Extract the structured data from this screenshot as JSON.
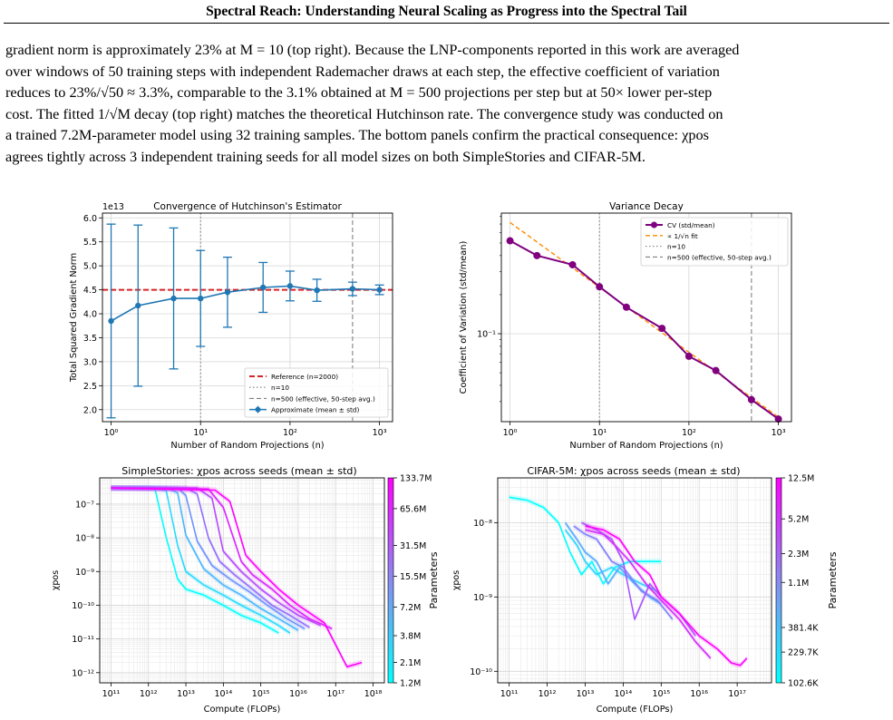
{
  "running_header": "Spectral Reach: Understanding Neural Scaling as Progress into the Spectral Tail",
  "body_lines": [
    "gradient norm is approximately 23% at M = 10 (top right). Because the LNP-components reported in this work are averaged",
    "over windows of 50 training steps with independent Rademacher draws at each step, the effective coefficient of variation",
    "reduces to 23%/√50 ≈ 3.3%, comparable to the 3.1% obtained at M = 500 projections per step but at 50× lower per-step",
    "cost. The fitted 1/√M decay (top right) matches the theoretical Hutchinson rate. The convergence study was conducted on",
    "a trained 7.2M-parameter model using 32 training samples. The bottom panels confirm the practical consequence: χpos",
    "agrees tightly across 3 independent training seeds for all model sizes on both SimpleStories and CIFAR-5M."
  ],
  "chart_data": [
    {
      "type": "line",
      "title": "Convergence of Hutchinson's Estimator",
      "xlabel": "Number of Random Projections (n)",
      "ylabel": "Total Squared Gradient Norm",
      "y_multiplier": "1e13",
      "xscale": "log",
      "xlim": [
        0.8,
        1400
      ],
      "ylim": [
        1.75,
        6.1
      ],
      "yticks": [
        "6.0",
        "5.5",
        "5.0",
        "4.5",
        "4.0",
        "3.5",
        "3.0",
        "2.5",
        "2.0"
      ],
      "xticks": [
        "10⁰",
        "10¹",
        "10²",
        "10³"
      ],
      "x": [
        1,
        2,
        5,
        10,
        20,
        50,
        100,
        200,
        500,
        1000
      ],
      "mean": [
        3.85,
        4.17,
        4.32,
        4.32,
        4.45,
        4.55,
        4.58,
        4.49,
        4.52,
        4.5
      ],
      "std": [
        2.02,
        1.68,
        1.47,
        1.0,
        0.73,
        0.52,
        0.31,
        0.23,
        0.14,
        0.1
      ],
      "reference": 4.5,
      "vlines": [
        10,
        500
      ],
      "legend": [
        "Reference (n=2000)",
        "n=10",
        "n=500 (effective, 50-step avg.)",
        "Approximate (mean ± std)"
      ],
      "legend_position": "lower right",
      "grid": true,
      "colors": {
        "series": "#1f77b4",
        "reference": "#d62728",
        "vline": "#808080"
      }
    },
    {
      "type": "line",
      "title": "Variance Decay",
      "xlabel": "Number of Random Projections (n)",
      "ylabel": "Coefficient of Variation (std/mean)",
      "xscale": "log",
      "yscale": "log",
      "xlim": [
        0.8,
        1400
      ],
      "ylim": [
        0.021,
        0.85
      ],
      "xticks": [
        "10⁰",
        "10¹",
        "10²",
        "10³"
      ],
      "yticks": [
        "10⁻¹"
      ],
      "x": [
        1,
        2,
        5,
        10,
        20,
        50,
        100,
        200,
        500,
        1000
      ],
      "cv": [
        0.52,
        0.4,
        0.34,
        0.23,
        0.16,
        0.11,
        0.067,
        0.052,
        0.031,
        0.022
      ],
      "fit_coefficient": 0.72,
      "vlines": [
        10,
        500
      ],
      "legend": [
        "CV (std/mean)",
        "∝ 1/√n fit",
        "n=10",
        "n=500 (effective, 50-step avg.)"
      ],
      "legend_position": "upper right",
      "grid": true,
      "colors": {
        "series": "#800080",
        "fit": "#ff8c00",
        "vline": "#808080"
      }
    },
    {
      "type": "line",
      "title": "SimpleStories: χpos across seeds (mean ± std)",
      "xlabel": "Compute (FLOPs)",
      "ylabel": "χpos",
      "xscale": "log",
      "yscale": "log",
      "xlim": [
        50000000000.0,
        2e+18
      ],
      "ylim": [
        5e-13,
        6e-07
      ],
      "xticks": [
        "10¹¹",
        "10¹²",
        "10¹³",
        "10¹⁴",
        "10¹⁵",
        "10¹⁶",
        "10¹⁷",
        "10¹⁸"
      ],
      "yticks": [
        "10⁻⁷",
        "10⁻⁸",
        "10⁻⁹",
        "10⁻¹⁰",
        "10⁻¹¹",
        "10⁻¹²"
      ],
      "colorbar_label": "Parameters",
      "colorbar_ticks": [
        "133.7M",
        "65.6M",
        "31.5M",
        "15.5M",
        "7.2M",
        "3.8M",
        "2.1M",
        "1.2M"
      ],
      "series": [
        {
          "name": "1.2M",
          "x": [
            100000000000.0,
            800000000000.0,
            1500000000000.0,
            3000000000000.0,
            6000000000000.0,
            10000000000000.0,
            30000000000000.0,
            100000000000000.0,
            300000000000000.0,
            1000000000000000.0,
            3000000000000000.0
          ],
          "values": [
            3e-07,
            3e-07,
            2.8e-07,
            1e-08,
            6e-10,
            3e-10,
            2e-10,
            1e-10,
            5e-11,
            3e-11,
            1.5e-11
          ]
        },
        {
          "name": "2.1M",
          "x": [
            100000000000.0,
            1500000000000.0,
            3000000000000.0,
            6000000000000.0,
            10000000000000.0,
            30000000000000.0,
            100000000000000.0,
            300000000000000.0,
            1000000000000000.0,
            3000000000000000.0,
            6000000000000000.0
          ],
          "values": [
            3e-07,
            3e-07,
            2.5e-07,
            6e-09,
            1e-09,
            4e-10,
            2e-10,
            1e-10,
            5e-11,
            2.5e-11,
            1.5e-11
          ]
        },
        {
          "name": "3.8M",
          "x": [
            100000000000.0,
            3000000000000.0,
            6000000000000.0,
            10000000000000.0,
            30000000000000.0,
            100000000000000.0,
            300000000000000.0,
            1000000000000000.0,
            3000000000000000.0,
            1e+16
          ],
          "values": [
            3e-07,
            3e-07,
            2.2e-07,
            1.2e-08,
            1.2e-09,
            4e-10,
            2e-10,
            8e-11,
            4e-11,
            1.8e-11
          ]
        },
        {
          "name": "7.2M",
          "x": [
            100000000000.0,
            6000000000000.0,
            10000000000000.0,
            20000000000000.0,
            50000000000000.0,
            150000000000000.0,
            500000000000000.0,
            1500000000000000.0,
            5000000000000000.0,
            1.5e+16
          ],
          "values": [
            3e-07,
            3e-07,
            1.8e-07,
            8e-09,
            1.5e-09,
            6e-10,
            2.5e-10,
            1e-10,
            4e-11,
            2e-11
          ]
        },
        {
          "name": "15.5M",
          "x": [
            100000000000.0,
            10000000000000.0,
            20000000000000.0,
            40000000000000.0,
            80000000000000.0,
            200000000000000.0,
            600000000000000.0,
            2000000000000000.0,
            6000000000000000.0,
            2e+16
          ],
          "values": [
            3e-07,
            3e-07,
            2e-07,
            1e-08,
            2e-09,
            8e-10,
            3e-10,
            1e-10,
            5e-11,
            2.2e-11
          ]
        },
        {
          "name": "31.5M",
          "x": [
            100000000000.0,
            20000000000000.0,
            50000000000000.0,
            100000000000000.0,
            300000000000000.0,
            1000000000000000.0,
            3000000000000000.0,
            1e+16,
            4e+16
          ],
          "values": [
            3e-07,
            3e-07,
            1.5e-07,
            4e-09,
            1e-09,
            3e-10,
            1.2e-10,
            5e-11,
            2.5e-11
          ]
        },
        {
          "name": "65.6M",
          "x": [
            100000000000.0,
            40000000000000.0,
            100000000000000.0,
            300000000000000.0,
            600000000000000.0,
            2000000000000000.0,
            6000000000000000.0,
            2e+16,
            8e+16
          ],
          "values": [
            3e-07,
            2.8e-07,
            8e-08,
            2e-09,
            8e-10,
            3e-10,
            1e-10,
            4e-11,
            2e-11
          ]
        },
        {
          "name": "133.7M",
          "x": [
            100000000000.0,
            60000000000000.0,
            150000000000000.0,
            400000000000000.0,
            1000000000000000.0,
            3000000000000000.0,
            1e+16,
            5e+16,
            2e+17,
            5e+17
          ],
          "values": [
            3e-07,
            2.6e-07,
            1.2e-07,
            3e-09,
            1e-09,
            3e-10,
            1e-10,
            3e-11,
            1.5e-12,
            2e-12
          ]
        }
      ],
      "colors": {
        "low": "#00ffff",
        "high": "#ff00ff"
      }
    },
    {
      "type": "line",
      "title": "CIFAR-5M: χpos across seeds (mean ± std)",
      "xlabel": "Compute (FLOPs)",
      "ylabel": "χpos",
      "xscale": "log",
      "yscale": "log",
      "xlim": [
        50000000000.0,
        8e+17
      ],
      "ylim": [
        7e-11,
        4e-08
      ],
      "xticks": [
        "10¹¹",
        "10¹²",
        "10¹³",
        "10¹⁴",
        "10¹⁵",
        "10¹⁶",
        "10¹⁷"
      ],
      "yticks": [
        "10⁻⁸",
        "10⁻⁹",
        "10⁻¹⁰"
      ],
      "colorbar_label": "Parameters",
      "colorbar_ticks": [
        "12.5M",
        "5.2M",
        "2.3M",
        "1.1M",
        "381.4K",
        "229.7K",
        "102.6K"
      ],
      "series": [
        {
          "name": "102.6K",
          "x": [
            100000000000.0,
            300000000000.0,
            800000000000.0,
            2000000000000.0,
            4000000000000.0,
            8000000000000.0,
            15000000000000.0,
            30000000000000.0,
            60000000000000.0,
            150000000000000.0,
            400000000000000.0,
            1000000000000000.0
          ],
          "values": [
            2.2e-08,
            2e-08,
            1.6e-08,
            1e-08,
            4e-09,
            2e-09,
            3e-09,
            1.5e-09,
            2.5e-09,
            3e-09,
            3e-09,
            3e-09
          ]
        },
        {
          "name": "229.7K",
          "x": [
            3000000000000.0,
            6000000000000.0,
            10000000000000.0,
            20000000000000.0,
            50000000000000.0,
            100000000000000.0,
            300000000000000.0,
            800000000000000.0
          ],
          "values": [
            8e-09,
            5e-09,
            3e-09,
            2e-09,
            2.5e-09,
            2e-09,
            1.5e-09,
            1.2e-09
          ]
        },
        {
          "name": "381.4K",
          "x": [
            3000000000000.0,
            6000000000000.0,
            10000000000000.0,
            20000000000000.0,
            40000000000000.0,
            80000000000000.0,
            200000000000000.0,
            500000000000000.0,
            1000000000000000.0
          ],
          "values": [
            1e-08,
            6e-09,
            4e-09,
            3e-09,
            1.5e-09,
            2.5e-09,
            1.5e-09,
            1e-09,
            8e-10
          ]
        },
        {
          "name": "1.1M",
          "x": [
            5000000000000.0,
            10000000000000.0,
            20000000000000.0,
            50000000000000.0,
            100000000000000.0,
            300000000000000.0,
            800000000000000.0,
            2000000000000000.0
          ],
          "values": [
            9e-09,
            7e-09,
            6e-09,
            3e-09,
            2.5e-09,
            1.2e-09,
            9e-10,
            5e-10
          ]
        },
        {
          "name": "2.3M",
          "x": [
            8000000000000.0,
            20000000000000.0,
            50000000000000.0,
            100000000000000.0,
            200000000000000.0,
            500000000000000.0,
            1000000000000000.0,
            3000000000000000.0,
            8000000000000000.0
          ],
          "values": [
            1e-08,
            8e-09,
            6e-09,
            3e-09,
            5e-10,
            1.5e-09,
            1e-09,
            6e-10,
            3e-10
          ]
        },
        {
          "name": "5.2M",
          "x": [
            10000000000000.0,
            30000000000000.0,
            60000000000000.0,
            150000000000000.0,
            400000000000000.0,
            1000000000000000.0,
            3000000000000000.0,
            8000000000000000.0,
            2e+16
          ],
          "values": [
            8e-09,
            7e-09,
            5e-09,
            3e-09,
            1.5e-09,
            9e-10,
            5e-10,
            2.5e-10,
            1.5e-10
          ]
        },
        {
          "name": "12.5M",
          "x": [
            10000000000000.0,
            30000000000000.0,
            80000000000000.0,
            200000000000000.0,
            500000000000000.0,
            1000000000000000.0,
            3000000000000000.0,
            1e+16,
            3e+16,
            7e+16,
            1.2e+17,
            1.8e+17
          ],
          "values": [
            9e-09,
            8e-09,
            6e-09,
            3e-09,
            2e-09,
            1e-09,
            6e-10,
            3e-10,
            2e-10,
            1.3e-10,
            1.2e-10,
            1.5e-10
          ]
        }
      ],
      "colors": {
        "low": "#00ffff",
        "high": "#ff00ff"
      }
    }
  ]
}
